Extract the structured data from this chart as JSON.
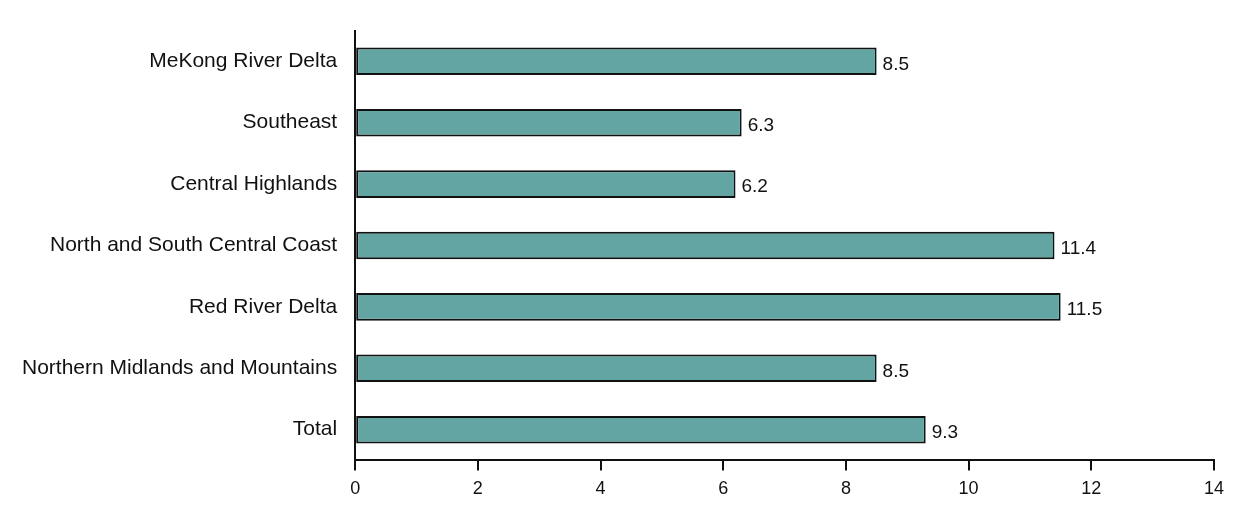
{
  "chart_data": {
    "type": "bar",
    "orientation": "horizontal",
    "categories": [
      "MeKong River Delta",
      "Southeast",
      "Central Highlands",
      "North and South Central Coast",
      "Red River Delta",
      "Northern Midlands and Mountains",
      "Total"
    ],
    "values": [
      8.5,
      6.3,
      6.2,
      11.4,
      11.5,
      8.5,
      9.3
    ],
    "color": "#62a5a3",
    "xlim": [
      0,
      14
    ],
    "xticks": [
      0,
      2,
      4,
      6,
      8,
      10,
      12,
      14
    ],
    "data_labels": true,
    "grid": false,
    "legend": false
  }
}
